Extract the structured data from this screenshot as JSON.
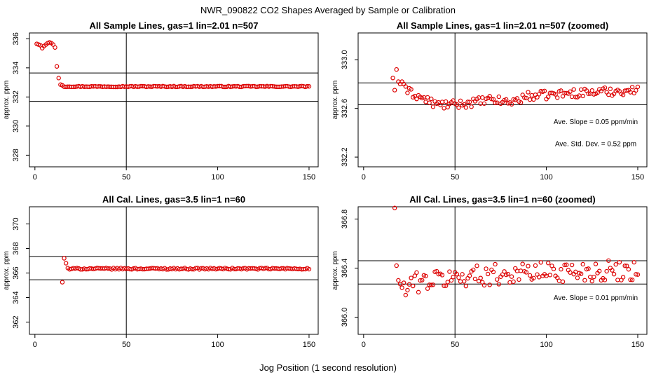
{
  "page": {
    "title": "NWR_090822  CO2 Shapes Averaged by Sample or Calibration",
    "xlabel": "Jog Position (1 second resolution)"
  },
  "style": {
    "point_color": "#dd0000",
    "line_color": "#000000"
  },
  "chart_data": [
    {
      "id": "p1",
      "type": "scatter",
      "title": "All Sample Lines, gas=1 lin=2.01 n=507",
      "ylabel": "approx. ppm",
      "xlim": [
        -3,
        155
      ],
      "ylim": [
        327.2,
        336.4
      ],
      "xticks": [
        0,
        50,
        100,
        150
      ],
      "yticks": [
        328,
        330,
        332,
        334,
        336
      ],
      "ytick_labels": [
        "328",
        "330",
        "332",
        "334",
        "336"
      ],
      "hlines": [
        333.65,
        331.7
      ],
      "vline": 50,
      "gen": {
        "x0": 1,
        "x1": 150,
        "base": 332.72,
        "noise": 0.03,
        "early": [
          [
            1,
            335.65
          ],
          [
            2,
            335.6
          ],
          [
            3,
            335.55
          ],
          [
            4,
            335.35
          ],
          [
            5,
            335.5
          ],
          [
            6,
            335.6
          ],
          [
            7,
            335.7
          ],
          [
            8,
            335.75
          ],
          [
            9,
            335.7
          ],
          [
            10,
            335.6
          ],
          [
            11,
            335.4
          ],
          [
            12,
            334.1
          ],
          [
            13,
            333.3
          ],
          [
            14,
            332.85
          ],
          [
            15,
            332.8
          ]
        ],
        "trend": []
      },
      "annotations": []
    },
    {
      "id": "p2",
      "type": "scatter",
      "title": "All Sample Lines, gas=1 lin=2.01 n=507 (zoomed)",
      "ylabel": "approx. ppm",
      "xlim": [
        -3,
        155
      ],
      "ylim": [
        332.12,
        333.22
      ],
      "xticks": [
        0,
        50,
        100,
        150
      ],
      "yticks": [
        332.2,
        332.6,
        333.0
      ],
      "ytick_labels": [
        "332.2",
        "332.6",
        "333.0"
      ],
      "hlines": [
        332.81,
        332.63
      ],
      "vline": 50,
      "gen": {
        "x0": 16,
        "x1": 150,
        "base": 332.7,
        "noise": 0.035,
        "early": [
          [
            16,
            332.85
          ],
          [
            17,
            332.75
          ],
          [
            18,
            332.92
          ],
          [
            19,
            332.82
          ],
          [
            20,
            332.8
          ],
          [
            21,
            332.82
          ],
          [
            22,
            332.8
          ],
          [
            23,
            332.78
          ]
        ],
        "trend": [
          [
            24,
            332.74
          ],
          [
            40,
            332.63
          ],
          [
            50,
            332.63
          ],
          [
            60,
            332.65
          ],
          [
            70,
            332.67
          ],
          [
            80,
            332.65
          ],
          [
            90,
            332.7
          ],
          [
            100,
            332.71
          ],
          [
            120,
            332.73
          ],
          [
            150,
            332.75
          ]
        ]
      },
      "annotations": [
        {
          "label": "Ave. Slope =",
          "value": "0.05",
          "unit": "ppm/min",
          "x": 127,
          "y": 332.47
        },
        {
          "label": "Ave. Std. Dev. =",
          "value": "0.52",
          "unit": "ppm",
          "x": 127,
          "y": 332.29
        }
      ]
    },
    {
      "id": "p3",
      "type": "scatter",
      "title": "All Cal. Lines, gas=3.5 lin=1 n=60",
      "ylabel": "approx. ppm",
      "xlim": [
        -3,
        155
      ],
      "ylim": [
        361.0,
        371.4
      ],
      "xticks": [
        0,
        50,
        100,
        150
      ],
      "yticks": [
        362,
        364,
        366,
        368,
        370
      ],
      "ytick_labels": [
        "362",
        "364",
        "366",
        "368",
        "370"
      ],
      "hlines": [
        367.35,
        365.45
      ],
      "vline": 50,
      "gen": {
        "x0": 15,
        "x1": 150,
        "base": 366.35,
        "noise": 0.06,
        "early": [
          [
            15,
            365.25
          ],
          [
            16,
            367.2
          ],
          [
            17,
            366.8
          ],
          [
            18,
            366.4
          ],
          [
            19,
            366.3
          ]
        ],
        "trend": []
      },
      "annotations": []
    },
    {
      "id": "p4",
      "type": "scatter",
      "title": "All Cal. Lines, gas=3.5 lin=1 n=60 (zoomed)",
      "ylabel": "approx. ppm",
      "xlim": [
        -3,
        155
      ],
      "ylim": [
        365.86,
        366.9
      ],
      "xticks": [
        0,
        50,
        100,
        150
      ],
      "yticks": [
        366.0,
        366.4,
        366.8
      ],
      "ytick_labels": [
        "366.0",
        "366.4",
        "366.8"
      ],
      "hlines": [
        366.46,
        366.27
      ],
      "vline": 50,
      "gen": {
        "x0": 17,
        "x1": 150,
        "base": 366.33,
        "noise": 0.085,
        "early": [
          [
            17,
            366.89
          ],
          [
            18,
            366.42
          ],
          [
            19,
            366.3
          ],
          [
            20,
            366.27
          ],
          [
            21,
            366.24
          ],
          [
            22,
            366.28
          ],
          [
            23,
            366.18
          ],
          [
            24,
            366.22
          ]
        ],
        "trend": [
          [
            25,
            366.28
          ],
          [
            60,
            366.34
          ],
          [
            100,
            366.37
          ],
          [
            150,
            366.38
          ]
        ]
      },
      "annotations": [
        {
          "label": "Ave. Slope =",
          "value": "0.01",
          "unit": "ppm/min",
          "x": 127,
          "y": 366.14
        }
      ]
    }
  ]
}
